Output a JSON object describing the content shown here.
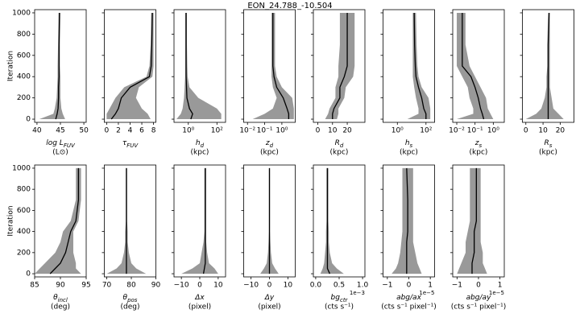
{
  "title": "EON_24.788_-10.504",
  "chart_data": [
    {
      "type": "line",
      "ylabel": "Iteration",
      "show_ytick_labels": true,
      "xlabel": "log L",
      "xlabel_sub": "FUV",
      "unit": "(L⊙)",
      "xlim": [
        39.5,
        50.5
      ],
      "xticks": [
        40,
        45,
        50
      ],
      "ylim": [
        -30,
        1030
      ],
      "yticks": [
        0,
        200,
        400,
        600,
        800,
        1000
      ],
      "color": "#000000",
      "band_color": "#999999",
      "y": [
        0,
        50,
        100,
        200,
        300,
        400,
        500,
        700,
        1000
      ],
      "values": [
        44,
        44.3,
        44.5,
        44.6,
        44.6,
        44.7,
        44.7,
        44.7,
        44.8
      ],
      "lower": [
        40.5,
        43.5,
        43.8,
        44.2,
        44.3,
        44.4,
        44.4,
        44.5,
        44.6
      ],
      "upper": [
        46,
        45.5,
        45.2,
        45,
        45,
        45,
        44.9,
        44.9,
        45
      ]
    },
    {
      "type": "line",
      "show_ytick_labels": false,
      "xlabel": "τ",
      "xlabel_sub": "FUV",
      "xlim": [
        -0.4,
        8.4
      ],
      "xticks": [
        0,
        2,
        4,
        6,
        8
      ],
      "ylim": [
        -30,
        1030
      ],
      "yticks": [
        0,
        200,
        400,
        600,
        800,
        1000
      ],
      "color": "#000000",
      "band_color": "#999999",
      "y": [
        0,
        50,
        100,
        200,
        300,
        400,
        500,
        700,
        1000
      ],
      "values": [
        0.8,
        1.5,
        2,
        2.5,
        4,
        7.3,
        7.6,
        7.7,
        7.8
      ],
      "lower": [
        0,
        0,
        0.5,
        1.5,
        3,
        6.8,
        7.3,
        7.5,
        7.6
      ],
      "upper": [
        7.5,
        7,
        6,
        5,
        5.5,
        7.8,
        8,
        8,
        8
      ]
    },
    {
      "type": "line",
      "show_ytick_labels": false,
      "xlabel": "h",
      "xlabel_sub": "d",
      "unit": "(kpc)",
      "xscale": "log",
      "xlim": [
        0.1,
        400
      ],
      "xticks": [
        {
          "value": 1,
          "label": "10⁰"
        },
        {
          "value": 100,
          "label": "10²"
        }
      ],
      "ylim": [
        -30,
        1030
      ],
      "yticks": [
        0,
        200,
        400,
        600,
        800,
        1000
      ],
      "color": "#000000",
      "band_color": "#999999",
      "y": [
        0,
        50,
        100,
        200,
        300,
        400,
        500,
        700,
        1000
      ],
      "values": [
        1.5,
        2,
        1.2,
        0.8,
        0.75,
        0.7,
        0.7,
        0.7,
        0.7
      ],
      "lower": [
        0.15,
        0.3,
        0.4,
        0.5,
        0.55,
        0.6,
        0.6,
        0.6,
        0.6
      ],
      "upper": [
        200,
        200,
        100,
        5,
        1.2,
        0.9,
        0.85,
        0.8,
        0.8
      ]
    },
    {
      "type": "line",
      "show_ytick_labels": false,
      "xlabel": "z",
      "xlabel_sub": "d",
      "unit": "(kpc)",
      "xscale": "log",
      "xlim": [
        0.006,
        6
      ],
      "xticks": [
        {
          "value": 0.01,
          "label": "10⁻²"
        },
        {
          "value": 0.1,
          "label": "10⁻¹"
        },
        {
          "value": 1,
          "label": "10⁰"
        }
      ],
      "ylim": [
        -30,
        1030
      ],
      "yticks": [
        0,
        200,
        400,
        600,
        800,
        1000
      ],
      "color": "#000000",
      "band_color": "#999999",
      "y": [
        0,
        50,
        100,
        200,
        300,
        400,
        500,
        700,
        1000
      ],
      "values": [
        2.5,
        2.5,
        2,
        1.2,
        0.5,
        0.35,
        0.3,
        0.3,
        0.3
      ],
      "lower": [
        0.02,
        0.1,
        0.3,
        0.5,
        0.3,
        0.25,
        0.25,
        0.25,
        0.25
      ],
      "upper": [
        5,
        5,
        5,
        4,
        1,
        0.5,
        0.4,
        0.4,
        0.4
      ]
    },
    {
      "type": "line",
      "show_ytick_labels": false,
      "xlabel": "R",
      "xlabel_sub": "d",
      "unit": "(kpc)",
      "xlim": [
        -3,
        32
      ],
      "xticks": [
        0,
        10,
        20
      ],
      "ylim": [
        -30,
        1030
      ],
      "yticks": [
        0,
        200,
        400,
        600,
        800,
        1000
      ],
      "color": "#000000",
      "band_color": "#999999",
      "y": [
        0,
        50,
        100,
        200,
        300,
        400,
        500,
        700,
        1000
      ],
      "values": [
        10,
        10,
        11,
        15,
        15,
        18,
        20,
        20,
        20
      ],
      "lower": [
        5,
        7,
        8,
        12,
        12,
        14,
        14,
        15,
        15
      ],
      "upper": [
        13,
        14,
        14,
        18,
        19,
        24,
        25,
        25,
        25
      ]
    },
    {
      "type": "line",
      "show_ytick_labels": false,
      "xlabel": "h",
      "xlabel_sub": "s",
      "unit": "(kpc)",
      "xscale": "log",
      "xlim": [
        0.1,
        400
      ],
      "xticks": [
        {
          "value": 1,
          "label": "10⁰"
        },
        {
          "value": 100,
          "label": "10²"
        }
      ],
      "ylim": [
        -30,
        1030
      ],
      "yticks": [
        0,
        200,
        400,
        600,
        800,
        1000
      ],
      "color": "#000000",
      "band_color": "#999999",
      "y": [
        0,
        50,
        100,
        200,
        300,
        400,
        500,
        700,
        1000
      ],
      "values": [
        100,
        100,
        70,
        50,
        30,
        20,
        18,
        16,
        15
      ],
      "lower": [
        5,
        30,
        30,
        20,
        15,
        12,
        12,
        12,
        12
      ],
      "upper": [
        200,
        200,
        200,
        150,
        50,
        30,
        25,
        22,
        20
      ]
    },
    {
      "type": "line",
      "show_ytick_labels": false,
      "xlabel": "z",
      "xlabel_sub": "s",
      "unit": "(kpc)",
      "xscale": "log",
      "xlim": [
        0.006,
        4
      ],
      "xticks": [
        {
          "value": 0.01,
          "label": "10⁻²"
        },
        {
          "value": 0.1,
          "label": "10⁻¹"
        },
        {
          "value": 1,
          "label": "10⁰"
        }
      ],
      "ylim": [
        -30,
        1030
      ],
      "yticks": [
        0,
        200,
        400,
        600,
        800,
        1000
      ],
      "color": "#000000",
      "band_color": "#999999",
      "y": [
        0,
        50,
        100,
        200,
        300,
        400,
        500,
        700,
        1000
      ],
      "values": [
        0.3,
        0.25,
        0.2,
        0.15,
        0.1,
        0.06,
        0.02,
        0.02,
        0.02
      ],
      "lower": [
        0.01,
        0.08,
        0.08,
        0.05,
        0.04,
        0.02,
        0.01,
        0.01,
        0.01
      ],
      "upper": [
        1,
        0.7,
        0.5,
        0.4,
        0.2,
        0.1,
        0.05,
        0.03,
        0.03
      ]
    },
    {
      "type": "line",
      "show_ytick_labels": false,
      "xlabel": "R",
      "xlabel_sub": "s",
      "unit": "(kpc)",
      "xlim": [
        -2,
        28
      ],
      "xticks": [
        0,
        10,
        20
      ],
      "ylim": [
        -30,
        1030
      ],
      "yticks": [
        0,
        200,
        400,
        600,
        800,
        1000
      ],
      "color": "#000000",
      "band_color": "#999999",
      "y": [
        0,
        50,
        100,
        200,
        300,
        400,
        500,
        700,
        1000
      ],
      "values": [
        13,
        13,
        13,
        13,
        13,
        13,
        13,
        13,
        13.5
      ],
      "lower": [
        0,
        6,
        9,
        11,
        12,
        12,
        12.5,
        12.5,
        13
      ],
      "upper": [
        22,
        19,
        16,
        15,
        14,
        14,
        14,
        14,
        14
      ]
    },
    {
      "type": "line",
      "ylabel": "Iteration",
      "show_ytick_labels": true,
      "xlabel": "θ",
      "xlabel_sub": "incl",
      "unit": "(deg)",
      "xlim": [
        85,
        95
      ],
      "xticks": [
        85,
        90,
        95
      ],
      "ylim": [
        -30,
        1030
      ],
      "yticks": [
        0,
        200,
        400,
        600,
        800,
        1000
      ],
      "color": "#000000",
      "band_color": "#999999",
      "y": [
        0,
        50,
        100,
        200,
        300,
        400,
        500,
        700,
        1000
      ],
      "values": [
        88,
        89,
        90,
        91,
        91.5,
        92,
        93,
        93.5,
        93.5
      ],
      "lower": [
        85,
        86,
        87,
        89,
        90,
        90.5,
        92,
        93,
        93
      ],
      "upper": [
        94,
        93,
        93,
        92.5,
        92.5,
        92.5,
        93.5,
        94,
        94
      ]
    },
    {
      "type": "line",
      "show_ytick_labels": false,
      "xlabel": "θ",
      "xlabel_sub": "pos",
      "unit": "(deg)",
      "xlim": [
        69,
        90
      ],
      "xticks": [
        70,
        80,
        90
      ],
      "ylim": [
        -30,
        1030
      ],
      "yticks": [
        0,
        200,
        400,
        600,
        800,
        1000
      ],
      "color": "#000000",
      "band_color": "#999999",
      "y": [
        0,
        50,
        100,
        200,
        300,
        400,
        500,
        700,
        1000
      ],
      "values": [
        78,
        78,
        78,
        78,
        78,
        78,
        78,
        78,
        78
      ],
      "lower": [
        70,
        74,
        76,
        77,
        77.5,
        77.5,
        77.8,
        77.8,
        77.8
      ],
      "upper": [
        86,
        82,
        80,
        79,
        78.5,
        78.5,
        78.3,
        78.3,
        78.3
      ]
    },
    {
      "type": "line",
      "show_ytick_labels": false,
      "xlabel": "Δx",
      "unit": "(pixel)",
      "xlim": [
        -14,
        14
      ],
      "xticks": [
        {
          "value": -10,
          "label": "−10"
        },
        0,
        10
      ],
      "ylim": [
        -30,
        1030
      ],
      "yticks": [
        0,
        200,
        400,
        600,
        800,
        1000
      ],
      "color": "#000000",
      "band_color": "#999999",
      "y": [
        0,
        50,
        100,
        200,
        300,
        400,
        500,
        700,
        1000
      ],
      "values": [
        2,
        2.5,
        3,
        3,
        3,
        3,
        3,
        3,
        3
      ],
      "lower": [
        -10,
        -4,
        0,
        1,
        2,
        2.5,
        2.5,
        2.5,
        2.5
      ],
      "upper": [
        10,
        8,
        5,
        4,
        3.5,
        3.5,
        3.5,
        3.5,
        3.5
      ]
    },
    {
      "type": "line",
      "show_ytick_labels": false,
      "xlabel": "Δy",
      "unit": "(pixel)",
      "xlim": [
        -14,
        14
      ],
      "xticks": [
        {
          "value": -10,
          "label": "−10"
        },
        0,
        10
      ],
      "ylim": [
        -30,
        1030
      ],
      "yticks": [
        0,
        200,
        400,
        600,
        800,
        1000
      ],
      "color": "#000000",
      "band_color": "#999999",
      "y": [
        0,
        50,
        100,
        200,
        300,
        400,
        500,
        700,
        1000
      ],
      "values": [
        0,
        0,
        0,
        0,
        0,
        0,
        0,
        0,
        0
      ],
      "lower": [
        -5,
        -3,
        -1.5,
        -0.8,
        -0.5,
        -0.3,
        -0.3,
        -0.3,
        -0.3
      ],
      "upper": [
        5,
        3,
        1.5,
        0.8,
        0.5,
        0.3,
        0.3,
        0.3,
        0.3
      ]
    },
    {
      "type": "line",
      "show_ytick_labels": false,
      "xlabel": "bg",
      "xlabel_sub": "ctr",
      "unit": "(cts s⁻¹)",
      "x_offset_label": "1e−3",
      "xlim": [
        -0.05,
        1.05
      ],
      "xticks": [
        {
          "value": 0,
          "label": "0.0"
        },
        {
          "value": 0.5,
          "label": "0.5"
        },
        {
          "value": 1,
          "label": "1.0"
        }
      ],
      "ylim": [
        -30,
        1030
      ],
      "yticks": [
        0,
        200,
        400,
        600,
        800,
        1000
      ],
      "color": "#000000",
      "band_color": "#999999",
      "y": [
        0,
        50,
        100,
        200,
        300,
        400,
        500,
        700,
        1000
      ],
      "values": [
        0.3,
        0.25,
        0.25,
        0.25,
        0.25,
        0.25,
        0.25,
        0.25,
        0.25
      ],
      "lower": [
        0.1,
        0.15,
        0.18,
        0.2,
        0.22,
        0.22,
        0.23,
        0.23,
        0.23
      ],
      "upper": [
        0.6,
        0.45,
        0.35,
        0.3,
        0.28,
        0.28,
        0.27,
        0.27,
        0.27
      ]
    },
    {
      "type": "line",
      "show_ytick_labels": false,
      "xlabel": "abg/ax",
      "unit": "(cts s⁻¹ pixel⁻¹)",
      "x_offset_label": "1e−5",
      "xlim": [
        -1.2,
        1.2
      ],
      "xticks": [
        {
          "value": -1,
          "label": "−1"
        },
        0,
        1
      ],
      "ylim": [
        -30,
        1030
      ],
      "yticks": [
        0,
        200,
        400,
        600,
        800,
        1000
      ],
      "color": "#000000",
      "band_color": "#999999",
      "y": [
        0,
        50,
        100,
        200,
        300,
        400,
        500,
        700,
        1000
      ],
      "values": [
        -0.1,
        -0.1,
        -0.1,
        -0.1,
        -0.1,
        -0.05,
        -0.05,
        -0.05,
        -0.1
      ],
      "lower": [
        -0.8,
        -0.6,
        -0.5,
        -0.4,
        -0.35,
        -0.3,
        -0.3,
        -0.3,
        -0.3
      ],
      "upper": [
        0.6,
        0.5,
        0.4,
        0.3,
        0.2,
        0.2,
        0.2,
        0.2,
        0.2
      ]
    },
    {
      "type": "line",
      "show_ytick_labels": false,
      "xlabel": "abg/ay",
      "unit": "(cts s⁻¹ pixel⁻¹)",
      "x_offset_label": "1e−5",
      "xlim": [
        -1.2,
        1.2
      ],
      "xticks": [
        {
          "value": -1,
          "label": "−1"
        },
        0,
        1
      ],
      "ylim": [
        -30,
        1030
      ],
      "yticks": [
        0,
        200,
        400,
        600,
        800,
        1000
      ],
      "color": "#000000",
      "band_color": "#999999",
      "y": [
        0,
        50,
        100,
        200,
        300,
        400,
        500,
        700,
        1000
      ],
      "values": [
        -0.3,
        -0.3,
        -0.3,
        -0.2,
        -0.2,
        -0.2,
        -0.1,
        -0.1,
        -0.1
      ],
      "lower": [
        -1,
        -0.9,
        -0.8,
        -0.6,
        -0.6,
        -0.5,
        -0.4,
        -0.4,
        -0.4
      ],
      "upper": [
        0.4,
        0.3,
        0.2,
        0.2,
        0.1,
        0.1,
        0.1,
        0.1,
        0.1
      ]
    }
  ]
}
